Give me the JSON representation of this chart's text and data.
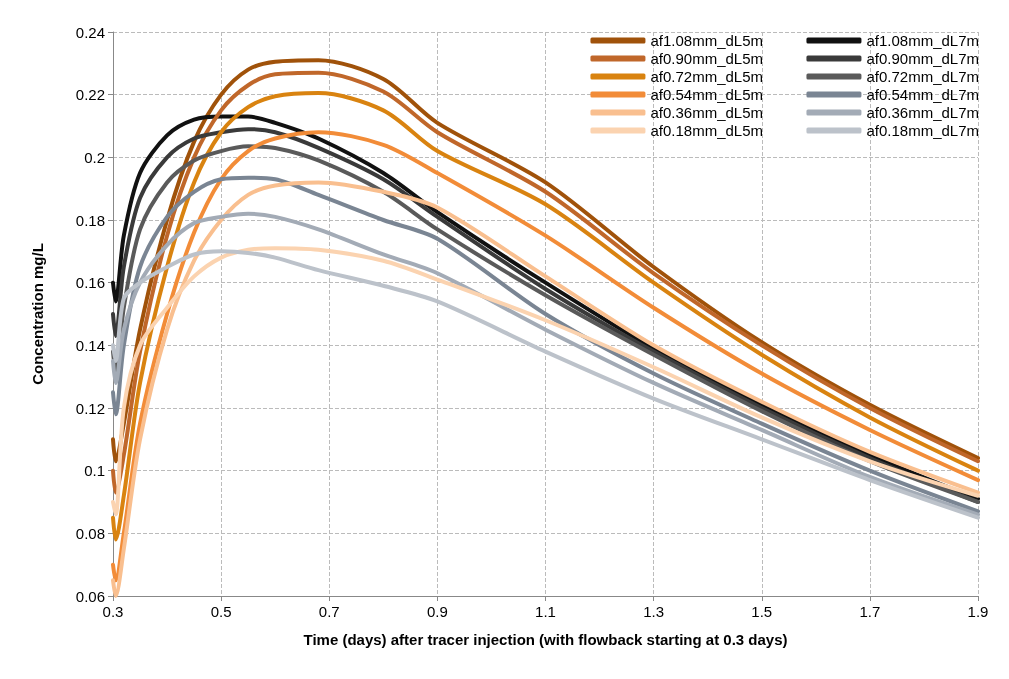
{
  "chart_data": {
    "type": "line",
    "xlabel": "Time (days) after tracer injection (with flowback starting at 0.3 days)",
    "ylabel": "Concentration mg/L",
    "x": [
      0.3,
      0.305,
      0.32,
      0.35,
      0.4,
      0.45,
      0.5,
      0.55,
      0.6,
      0.68,
      0.8,
      0.9,
      1.1,
      1.3,
      1.5,
      1.7,
      1.9
    ],
    "series": [
      {
        "name": "af1.08mm_dL5m",
        "color": "#a0520a",
        "values": [
          0.11,
          0.103,
          0.115,
          0.145,
          0.18,
          0.205,
          0.22,
          0.228,
          0.2305,
          0.231,
          0.225,
          0.211,
          0.192,
          0.165,
          0.141,
          0.121,
          0.104
        ]
      },
      {
        "name": "af1.08mm_dL7m",
        "color": "#111111",
        "values": [
          0.16,
          0.154,
          0.175,
          0.195,
          0.207,
          0.212,
          0.213,
          0.213,
          0.211,
          0.206,
          0.195,
          0.1825,
          0.16,
          0.139,
          0.121,
          0.105,
          0.091
        ]
      },
      {
        "name": "af0.90mm_dL5m",
        "color": "#c0672a",
        "values": [
          0.1,
          0.093,
          0.105,
          0.138,
          0.175,
          0.2,
          0.215,
          0.223,
          0.2265,
          0.227,
          0.221,
          0.208,
          0.189,
          0.163,
          0.14,
          0.12,
          0.103
        ]
      },
      {
        "name": "af0.90mm_dL7m",
        "color": "#3a3a3a",
        "values": [
          0.15,
          0.143,
          0.165,
          0.187,
          0.2,
          0.206,
          0.208,
          0.209,
          0.208,
          0.203,
          0.193,
          0.181,
          0.158,
          0.138,
          0.12,
          0.104,
          0.09
        ]
      },
      {
        "name": "af0.72mm_dL5m",
        "color": "#d98310",
        "values": [
          0.085,
          0.078,
          0.092,
          0.128,
          0.165,
          0.192,
          0.208,
          0.216,
          0.2195,
          0.2205,
          0.215,
          0.202,
          0.185,
          0.16,
          0.137,
          0.117,
          0.1
        ]
      },
      {
        "name": "af0.72mm_dL7m",
        "color": "#5a5a5a",
        "values": [
          0.138,
          0.131,
          0.152,
          0.177,
          0.192,
          0.199,
          0.202,
          0.2035,
          0.203,
          0.199,
          0.189,
          0.177,
          0.156,
          0.137,
          0.119,
          0.103,
          0.09
        ]
      },
      {
        "name": "af0.54mm_dL5m",
        "color": "#f28c38",
        "values": [
          0.07,
          0.065,
          0.08,
          0.115,
          0.15,
          0.176,
          0.193,
          0.202,
          0.206,
          0.208,
          0.204,
          0.195,
          0.175,
          0.152,
          0.131,
          0.113,
          0.097
        ]
      },
      {
        "name": "af0.54mm_dL7m",
        "color": "#7a8593",
        "values": [
          0.125,
          0.118,
          0.14,
          0.165,
          0.181,
          0.189,
          0.193,
          0.1935,
          0.193,
          0.188,
          0.18,
          0.174,
          0.15,
          0.131,
          0.115,
          0.1,
          0.087
        ]
      },
      {
        "name": "af0.36mm_dL5m",
        "color": "#f9bf8f",
        "values": [
          0.065,
          0.06,
          0.075,
          0.11,
          0.145,
          0.167,
          0.18,
          0.188,
          0.191,
          0.192,
          0.189,
          0.184,
          0.162,
          0.14,
          0.122,
          0.106,
          0.093
        ]
      },
      {
        "name": "af0.36mm_dL7m",
        "color": "#a3abb6",
        "values": [
          0.135,
          0.128,
          0.145,
          0.16,
          0.172,
          0.179,
          0.181,
          0.182,
          0.181,
          0.177,
          0.169,
          0.163,
          0.145,
          0.128,
          0.113,
          0.098,
          0.086
        ]
      },
      {
        "name": "af0.18mm_dL5m",
        "color": "#fbd3b0",
        "values": [
          0.09,
          0.086,
          0.12,
          0.14,
          0.152,
          0.162,
          0.168,
          0.1705,
          0.171,
          0.1705,
          0.167,
          0.161,
          0.148,
          0.133,
          0.117,
          0.103,
          0.092
        ]
      },
      {
        "name": "af0.18mm_dL7m",
        "color": "#bcc2ca",
        "values": [
          0.14,
          0.135,
          0.155,
          0.16,
          0.165,
          0.169,
          0.17,
          0.1695,
          0.168,
          0.164,
          0.159,
          0.154,
          0.138,
          0.123,
          0.11,
          0.097,
          0.085
        ]
      }
    ],
    "xlim": [
      0.3,
      1.9
    ],
    "xticks": [
      0.3,
      0.5,
      0.7,
      0.9,
      1.1,
      1.3,
      1.5,
      1.7,
      1.9
    ],
    "ylim": [
      0.06,
      0.24
    ],
    "yticks": [
      0.06,
      0.08,
      0.1,
      0.12,
      0.14,
      0.16,
      0.18,
      0.2,
      0.22,
      0.24
    ],
    "grid": true,
    "legend": "top right",
    "marker": "none",
    "line_style": "solid"
  }
}
